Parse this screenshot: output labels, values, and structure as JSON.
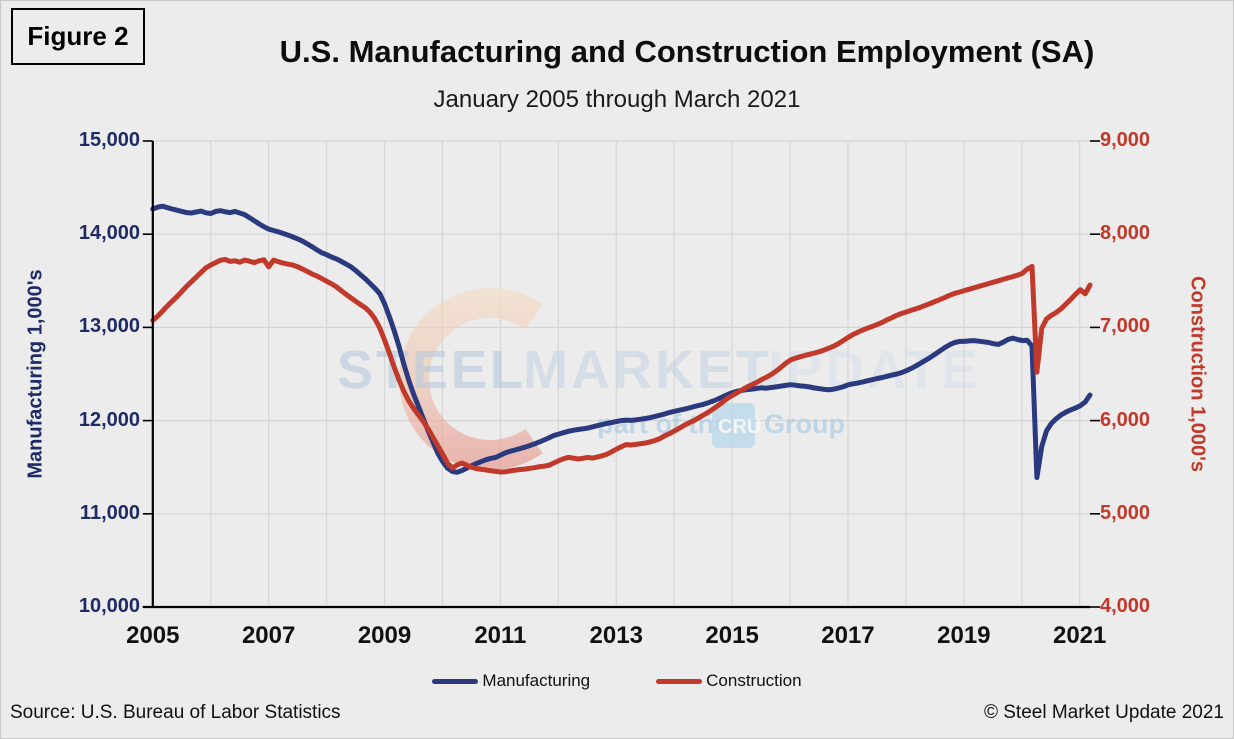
{
  "figure_label": "Figure 2",
  "title": "U.S. Manufacturing and Construction Employment (SA)",
  "subtitle": "January 2005 through March 2021",
  "footer": {
    "source": "Source: U.S. Bureau  of Labor Statistics",
    "copyright": "© Steel Market Update 2021"
  },
  "watermark": {
    "word1": "STEEL",
    "word2": "MARKET",
    "word3": "UPDATE",
    "tagline_prefix": "part of the",
    "badge": "CRU",
    "tagline_suffix": "Group"
  },
  "colors": {
    "background": "#ECECEC",
    "gridline": "#D6D6D6",
    "axis": "#000000",
    "manufacturing": "#2B3A7E",
    "construction": "#C0392B",
    "left_axis_text": "#1F2B66",
    "right_axis_text": "#C0392B"
  },
  "chart_data": {
    "type": "line",
    "title": "U.S. Manufacturing and Construction Employment (SA)",
    "subtitle": "January 2005 through March 2021",
    "x_frequency": "monthly",
    "x_start": "2005-01",
    "x_end": "2021-03",
    "x_tick_labels": [
      "2005",
      "2007",
      "2009",
      "2011",
      "2013",
      "2015",
      "2017",
      "2019",
      "2021"
    ],
    "grid": true,
    "legend_position": "bottom",
    "left_axis": {
      "label": "Manufacturing 1,000's",
      "min": 10000,
      "max": 15000,
      "step": 1000,
      "tick_labels": [
        "15,000",
        "14,000",
        "13,000",
        "12,000",
        "11,000",
        "10,000"
      ]
    },
    "right_axis": {
      "label": "Construction 1,000's",
      "min": 4000,
      "max": 9000,
      "step": 1000,
      "tick_labels": [
        "9,000",
        "8,000",
        "7,000",
        "6,000",
        "5,000",
        "4,000"
      ]
    },
    "series": [
      {
        "name": "Manufacturing",
        "axis": "left",
        "color": "#2B3A7E",
        "values": [
          14270,
          14290,
          14300,
          14285,
          14270,
          14258,
          14245,
          14232,
          14228,
          14238,
          14248,
          14230,
          14222,
          14245,
          14252,
          14240,
          14232,
          14245,
          14228,
          14210,
          14178,
          14145,
          14110,
          14080,
          14055,
          14040,
          14025,
          14008,
          13990,
          13970,
          13950,
          13925,
          13895,
          13865,
          13830,
          13800,
          13780,
          13755,
          13735,
          13708,
          13680,
          13650,
          13610,
          13565,
          13520,
          13470,
          13420,
          13360,
          13250,
          13110,
          12960,
          12790,
          12600,
          12430,
          12280,
          12150,
          12020,
          11890,
          11770,
          11650,
          11560,
          11490,
          11455,
          11445,
          11465,
          11490,
          11515,
          11540,
          11560,
          11580,
          11595,
          11605,
          11630,
          11655,
          11672,
          11685,
          11700,
          11715,
          11732,
          11750,
          11770,
          11792,
          11815,
          11840,
          11855,
          11870,
          11885,
          11896,
          11905,
          11912,
          11920,
          11932,
          11945,
          11958,
          11970,
          11980,
          11990,
          12000,
          12005,
          12002,
          12008,
          12015,
          12022,
          12032,
          12045,
          12058,
          12072,
          12088,
          12100,
          12112,
          12122,
          12135,
          12150,
          12162,
          12175,
          12192,
          12210,
          12232,
          12255,
          12280,
          12300,
          12315,
          12325,
          12332,
          12338,
          12345,
          12352,
          12348,
          12355,
          12362,
          12370,
          12378,
          12385,
          12380,
          12372,
          12368,
          12360,
          12350,
          12342,
          12335,
          12330,
          12338,
          12350,
          12365,
          12385,
          12395,
          12405,
          12415,
          12428,
          12440,
          12452,
          12462,
          12475,
          12488,
          12500,
          12515,
          12535,
          12560,
          12588,
          12618,
          12648,
          12680,
          12715,
          12750,
          12785,
          12815,
          12838,
          12850,
          12850,
          12855,
          12858,
          12852,
          12845,
          12838,
          12825,
          12818,
          12840,
          12870,
          12885,
          12870,
          12858,
          12862,
          12800,
          11390,
          11720,
          11890,
          11970,
          12020,
          12060,
          12090,
          12115,
          12135,
          12160,
          12200,
          12275
        ]
      },
      {
        "name": "Construction",
        "axis": "right",
        "color": "#C0392B",
        "values": [
          7075,
          7120,
          7175,
          7230,
          7280,
          7330,
          7385,
          7440,
          7490,
          7540,
          7590,
          7640,
          7670,
          7695,
          7720,
          7730,
          7708,
          7715,
          7700,
          7722,
          7710,
          7695,
          7715,
          7725,
          7650,
          7722,
          7705,
          7690,
          7678,
          7668,
          7650,
          7625,
          7600,
          7572,
          7550,
          7522,
          7495,
          7468,
          7435,
          7395,
          7355,
          7318,
          7280,
          7245,
          7210,
          7160,
          7090,
          6990,
          6860,
          6720,
          6570,
          6430,
          6310,
          6210,
          6130,
          6060,
          5990,
          5910,
          5820,
          5730,
          5640,
          5545,
          5490,
          5525,
          5545,
          5520,
          5500,
          5485,
          5478,
          5470,
          5462,
          5455,
          5448,
          5452,
          5460,
          5468,
          5475,
          5480,
          5488,
          5495,
          5505,
          5512,
          5520,
          5545,
          5570,
          5590,
          5605,
          5598,
          5588,
          5595,
          5605,
          5598,
          5608,
          5622,
          5640,
          5665,
          5695,
          5720,
          5742,
          5738,
          5745,
          5752,
          5760,
          5772,
          5788,
          5808,
          5838,
          5862,
          5890,
          5918,
          5948,
          5975,
          6000,
          6030,
          6060,
          6090,
          6125,
          6160,
          6200,
          6240,
          6270,
          6300,
          6330,
          6360,
          6385,
          6410,
          6440,
          6465,
          6495,
          6530,
          6570,
          6615,
          6650,
          6670,
          6685,
          6700,
          6712,
          6725,
          6740,
          6758,
          6778,
          6800,
          6828,
          6860,
          6895,
          6925,
          6950,
          6972,
          6992,
          7012,
          7032,
          7055,
          7080,
          7105,
          7130,
          7150,
          7165,
          7185,
          7200,
          7218,
          7238,
          7258,
          7280,
          7300,
          7322,
          7345,
          7365,
          7380,
          7395,
          7410,
          7425,
          7440,
          7455,
          7470,
          7485,
          7500,
          7515,
          7530,
          7545,
          7560,
          7580,
          7625,
          7655,
          6520,
          6988,
          7090,
          7130,
          7160,
          7200,
          7250,
          7300,
          7355,
          7405,
          7360,
          7455
        ]
      }
    ]
  }
}
